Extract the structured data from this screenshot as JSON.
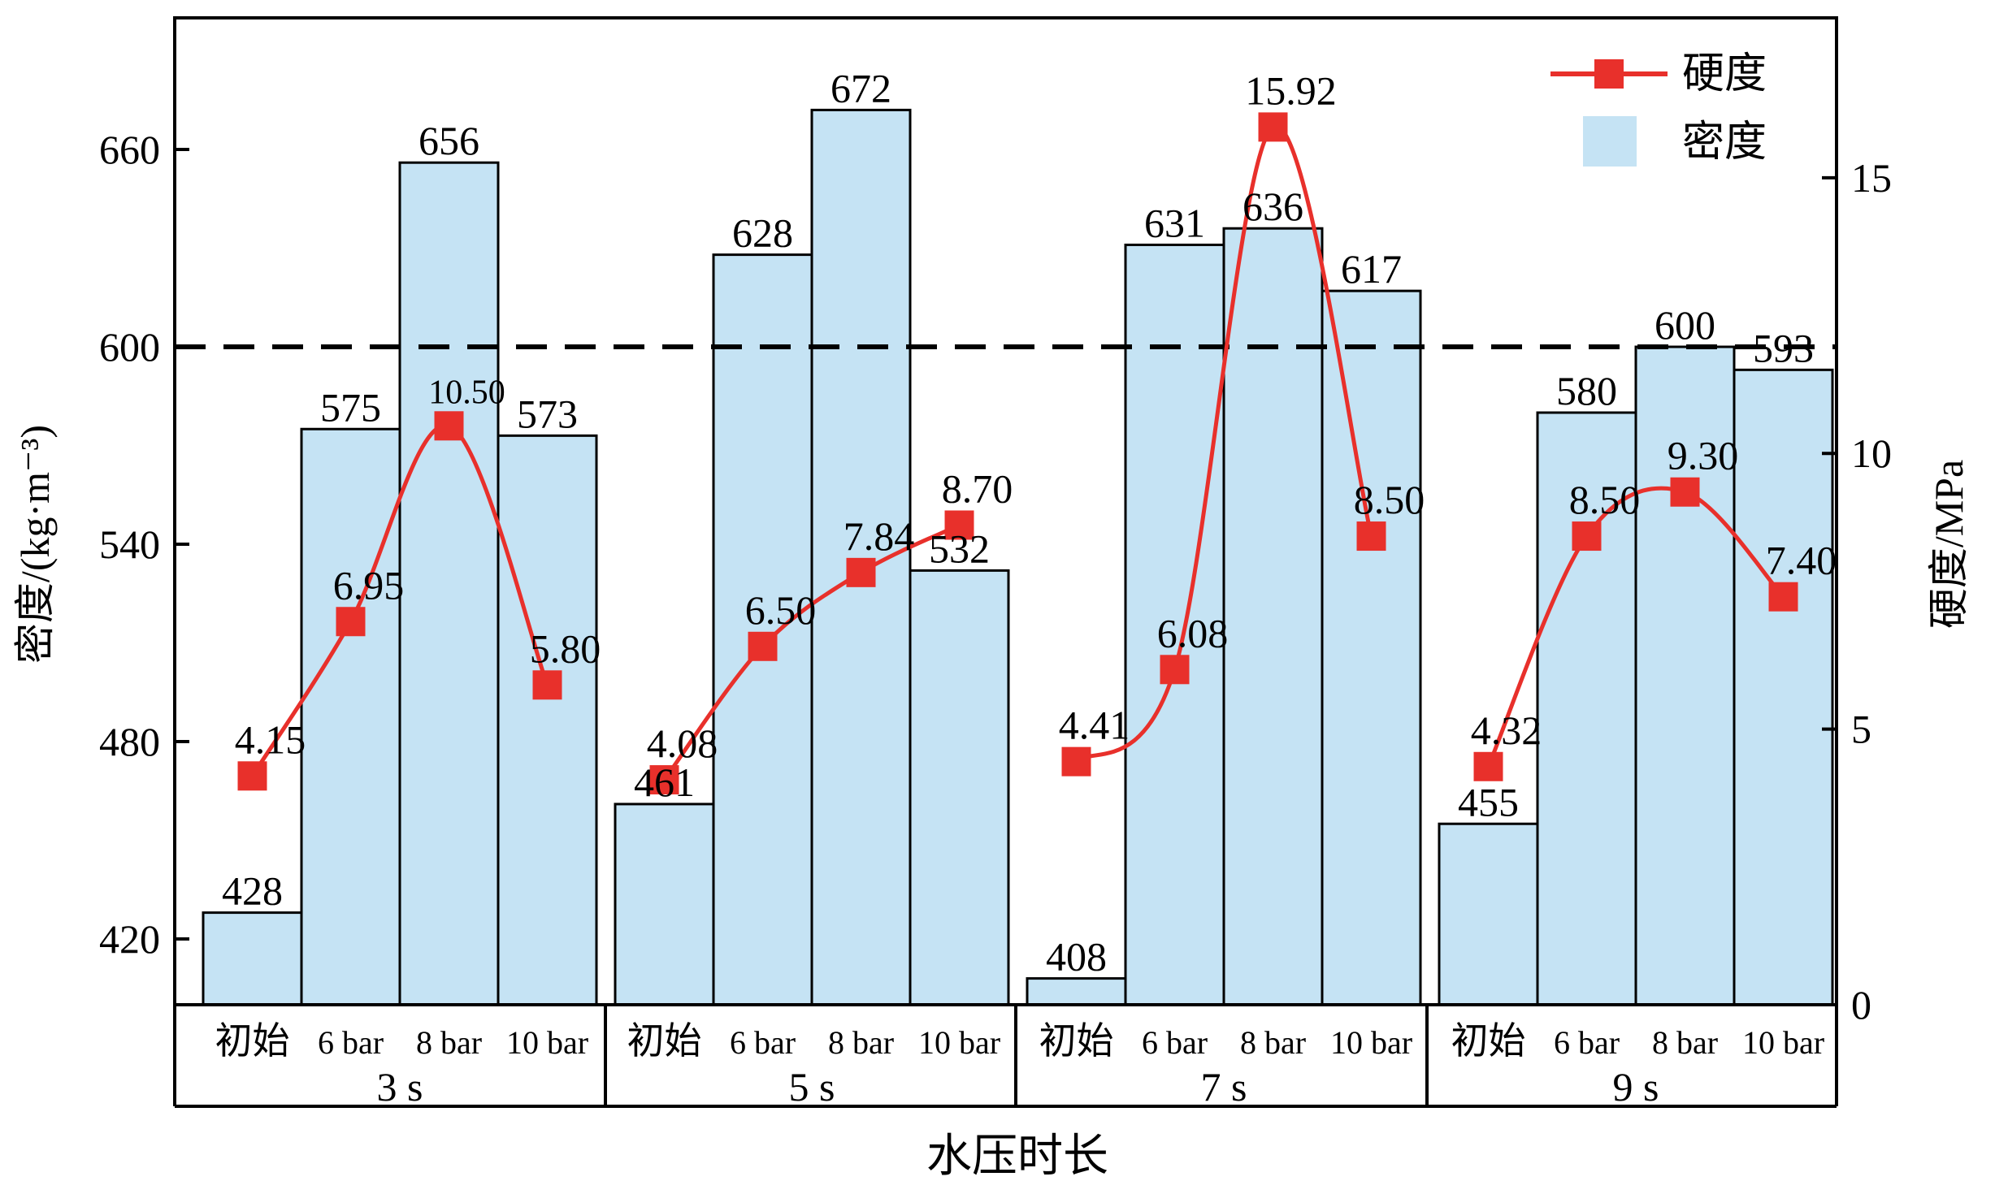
{
  "chart_data": {
    "type": "bar",
    "xlabel": "水压时长",
    "ylabel_left": "密度/(kg·m⁻³)",
    "ylabel_right": "硬度/MPa",
    "ylim_left": [
      400,
      700
    ],
    "yticks_left": [
      420,
      480,
      540,
      600,
      660
    ],
    "ylim_right": [
      0,
      17.9
    ],
    "yticks_right": [
      0,
      5,
      10,
      15
    ],
    "reference_line": {
      "axis": "left",
      "value": 600,
      "style": "dashed"
    },
    "groups": [
      {
        "label": "3 s",
        "categories": [
          "初始",
          "6 bar",
          "8 bar",
          "10 bar"
        ]
      },
      {
        "label": "5 s",
        "categories": [
          "初始",
          "6 bar",
          "8 bar",
          "10 bar"
        ]
      },
      {
        "label": "7 s",
        "categories": [
          "初始",
          "6 bar",
          "8 bar",
          "10 bar"
        ]
      },
      {
        "label": "9 s",
        "categories": [
          "初始",
          "6 bar",
          "8 bar",
          "10 bar"
        ]
      }
    ],
    "series": [
      {
        "name": "密度",
        "kind": "bar",
        "axis": "left",
        "color": "#c5e3f4",
        "values": [
          428,
          575,
          656,
          573,
          461,
          628,
          672,
          532,
          408,
          631,
          636,
          617,
          455,
          580,
          600,
          593
        ],
        "labels": [
          "428",
          "575",
          "656",
          "573",
          "461",
          "628",
          "672",
          "532",
          "408",
          "631",
          "636",
          "617",
          "455",
          "580",
          "600",
          "593"
        ]
      },
      {
        "name": "硬度",
        "kind": "line",
        "axis": "right",
        "color": "#e8302b",
        "values": [
          4.15,
          6.95,
          10.5,
          5.8,
          4.08,
          6.5,
          7.84,
          8.7,
          4.41,
          6.08,
          15.92,
          8.5,
          4.32,
          8.5,
          9.3,
          7.4
        ],
        "labels": [
          "4.15",
          "6.95",
          "10.50",
          "5.80",
          "4.08",
          "6.50",
          "7.84",
          "8.70",
          "4.41",
          "6.08",
          "15.92",
          "8.50",
          "4.32",
          "8.50",
          "9.30",
          "7.40"
        ]
      }
    ],
    "legend": {
      "position": "top-right",
      "entries": [
        "硬度",
        "密度"
      ]
    }
  }
}
